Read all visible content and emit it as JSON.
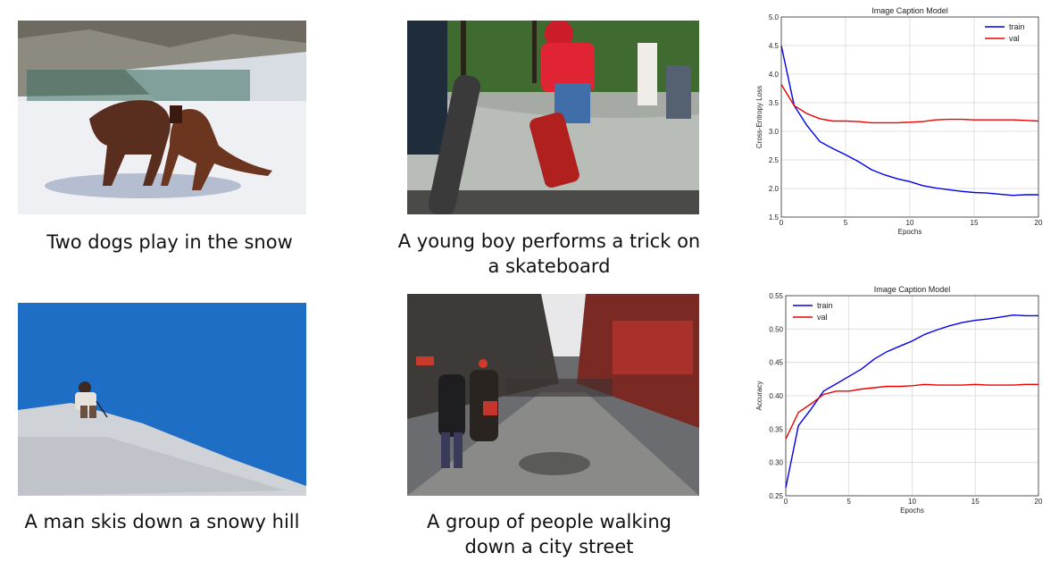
{
  "photos": [
    {
      "caption_lines": [
        "Two dogs play in the snow"
      ]
    },
    {
      "caption_lines": [
        "A young boy performs a trick on",
        "a skateboard"
      ]
    },
    {
      "caption_lines": [
        "A man skis down a snowy hill"
      ]
    },
    {
      "caption_lines": [
        "A group of people walking",
        "down a city street"
      ]
    }
  ],
  "chart_data": [
    {
      "type": "line",
      "title": "Image Caption Model",
      "xlabel": "Epochs",
      "ylabel": "Cross-Entropy Loss",
      "xlim": [
        0,
        20
      ],
      "ylim": [
        1.5,
        5.0
      ],
      "xticks": [
        0,
        5,
        10,
        15,
        20
      ],
      "yticks": [
        1.5,
        2.0,
        2.5,
        3.0,
        3.5,
        4.0,
        4.5,
        5.0
      ],
      "ytick_labels": [
        "1.5",
        "2.0",
        "2.5",
        "3.0",
        "3.5",
        "4.0",
        "4.5",
        "5.0"
      ],
      "grid": true,
      "legend": "top-right",
      "x": [
        0,
        1,
        2,
        3,
        4,
        5,
        6,
        7,
        8,
        9,
        10,
        11,
        12,
        13,
        14,
        15,
        16,
        17,
        18,
        19,
        20
      ],
      "series": [
        {
          "name": "train",
          "color": "#0000ee",
          "values": [
            4.5,
            3.45,
            3.1,
            2.82,
            2.7,
            2.59,
            2.47,
            2.33,
            2.24,
            2.17,
            2.12,
            2.05,
            2.01,
            1.98,
            1.95,
            1.93,
            1.92,
            1.9,
            1.88,
            1.89,
            1.89
          ]
        },
        {
          "name": "val",
          "color": "#ee0000",
          "values": [
            3.82,
            3.45,
            3.31,
            3.22,
            3.18,
            3.18,
            3.17,
            3.15,
            3.15,
            3.15,
            3.16,
            3.17,
            3.2,
            3.21,
            3.21,
            3.2,
            3.2,
            3.2,
            3.2,
            3.19,
            3.18
          ]
        }
      ]
    },
    {
      "type": "line",
      "title": "Image Caption Model",
      "xlabel": "Epochs",
      "ylabel": "Accuracy",
      "xlim": [
        0,
        20
      ],
      "ylim": [
        0.25,
        0.55
      ],
      "xticks": [
        0,
        5,
        10,
        15,
        20
      ],
      "yticks": [
        0.25,
        0.3,
        0.35,
        0.4,
        0.45,
        0.5,
        0.55
      ],
      "ytick_labels": [
        "0.25",
        "0.30",
        "0.35",
        "0.40",
        "0.45",
        "0.50",
        "0.55"
      ],
      "grid": true,
      "legend": "top-left",
      "x": [
        0,
        1,
        2,
        3,
        4,
        5,
        6,
        7,
        8,
        9,
        10,
        11,
        12,
        13,
        14,
        15,
        16,
        17,
        18,
        19,
        20
      ],
      "series": [
        {
          "name": "train",
          "color": "#0000ee",
          "values": [
            0.262,
            0.355,
            0.38,
            0.407,
            0.418,
            0.429,
            0.44,
            0.455,
            0.466,
            0.474,
            0.482,
            0.492,
            0.499,
            0.505,
            0.51,
            0.513,
            0.515,
            0.518,
            0.521,
            0.52,
            0.52
          ]
        },
        {
          "name": "val",
          "color": "#ee0000",
          "values": [
            0.335,
            0.375,
            0.388,
            0.402,
            0.407,
            0.407,
            0.41,
            0.412,
            0.414,
            0.414,
            0.415,
            0.417,
            0.416,
            0.416,
            0.416,
            0.417,
            0.416,
            0.416,
            0.416,
            0.417,
            0.417
          ]
        }
      ]
    }
  ]
}
